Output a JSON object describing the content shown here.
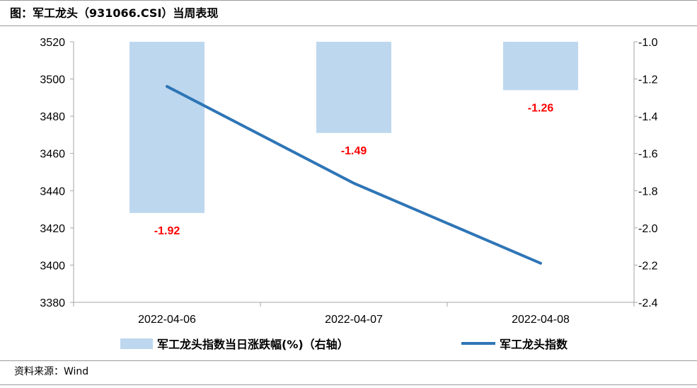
{
  "header": {
    "title": "图：军工龙头（931066.CSI）当周表现"
  },
  "footer": {
    "source": "资料来源：Wind"
  },
  "chart_data": {
    "type": "bar+line",
    "title": "图：军工龙头（931066.CSI）当周表现",
    "categories": [
      "2022-04-06",
      "2022-04-07",
      "2022-04-08"
    ],
    "series": [
      {
        "name": "军工龙头指数当日涨跌幅(%)（右轴）",
        "type": "bar",
        "axis": "right",
        "values": [
          -1.92,
          -1.49,
          -1.26
        ],
        "data_labels": [
          "-1.92",
          "-1.49",
          "-1.26"
        ],
        "color": "#bdd7ee",
        "label_color": "#ff0000"
      },
      {
        "name": "军工龙头指数",
        "type": "line",
        "axis": "left",
        "values": [
          3496,
          3444,
          3401
        ],
        "color": "#2e75b6"
      }
    ],
    "left_axis": {
      "ylim": [
        3380,
        3520
      ],
      "ticks": [
        "3520",
        "3500",
        "3480",
        "3460",
        "3440",
        "3420",
        "3400",
        "3380"
      ]
    },
    "right_axis": {
      "ylim": [
        -2.4,
        -1.0
      ],
      "ticks": [
        "-1.0",
        "-1.2",
        "-1.4",
        "-1.6",
        "-1.8",
        "-2.0",
        "-2.2",
        "-2.4"
      ]
    },
    "grid": false,
    "legend_position": "bottom"
  }
}
